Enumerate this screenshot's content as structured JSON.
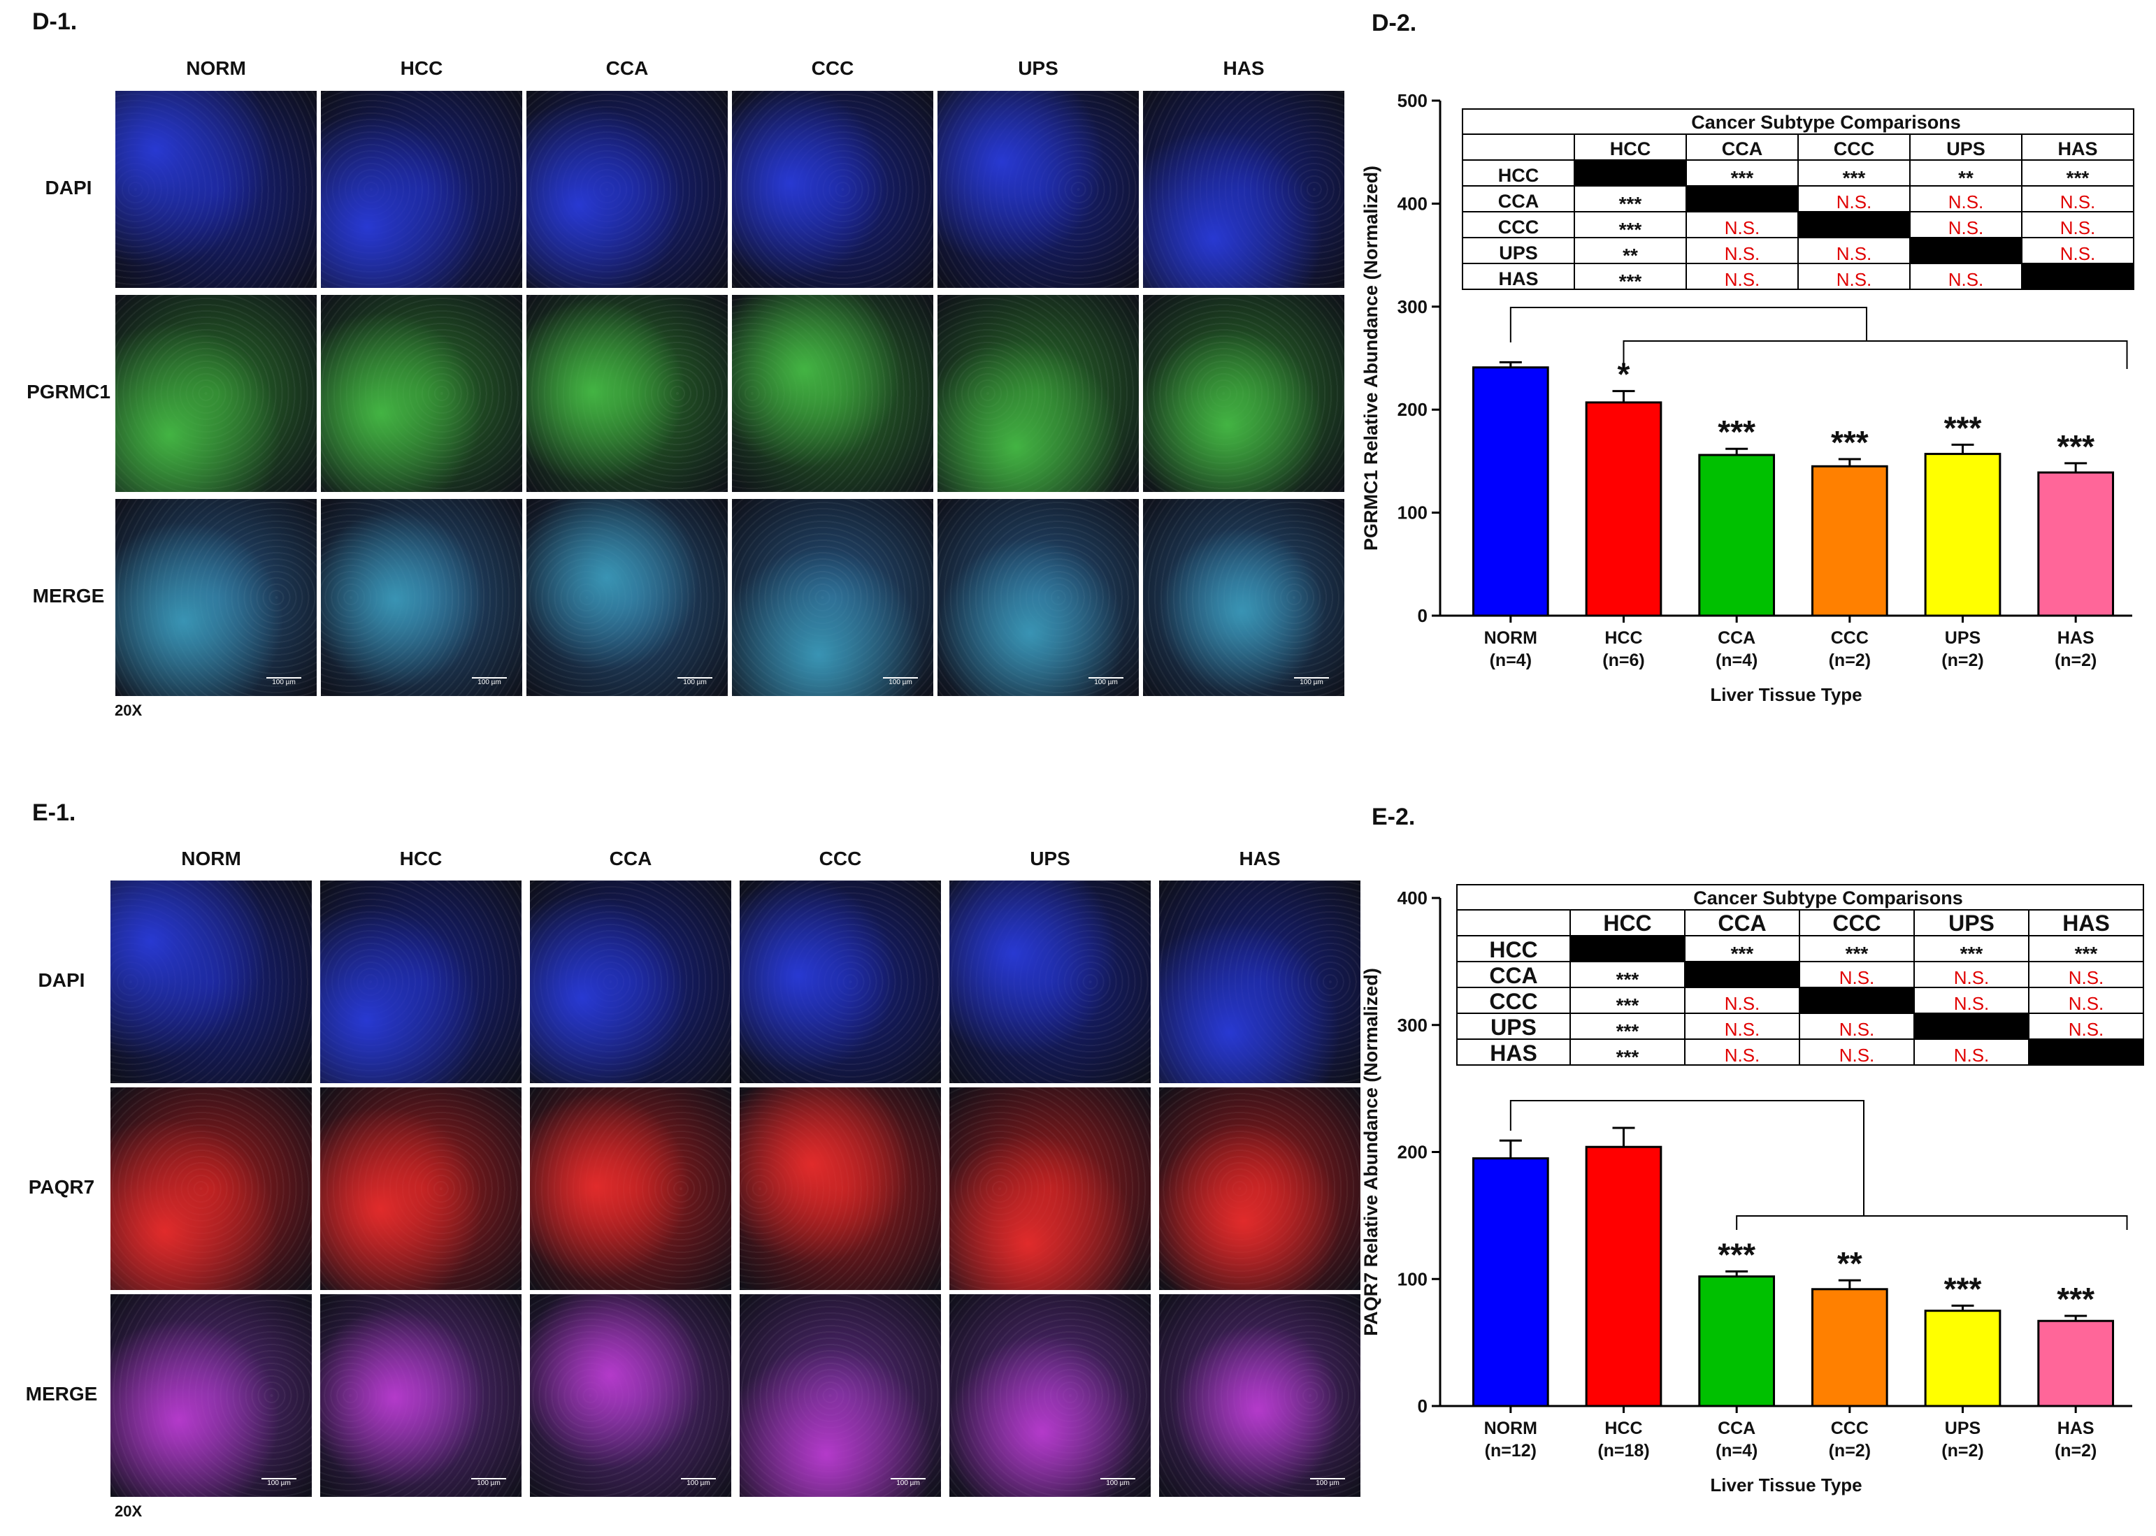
{
  "panel_d1": {
    "label": "D-1.",
    "columns": [
      "NORM",
      "HCC",
      "CCA",
      "CCC",
      "UPS",
      "HAS"
    ],
    "rows": [
      "DAPI",
      "PGRMC1",
      "MERGE"
    ],
    "magnification": "20X",
    "scale_bar_text": "100 µm"
  },
  "panel_e1": {
    "label": "E-1.",
    "columns": [
      "NORM",
      "HCC",
      "CCA",
      "CCC",
      "UPS",
      "HAS"
    ],
    "rows": [
      "DAPI",
      "PAQR7",
      "MERGE"
    ],
    "magnification": "20X",
    "scale_bar_text": "100 µm"
  },
  "colors": {
    "dapi": "#0b1580",
    "pgrmc1": "#1f6a1f",
    "paqr7": "#a01010",
    "merge_green": "#1b4c7a",
    "merge_red": "#55207a",
    "NORM": "#0000ff",
    "HCC": "#ff0000",
    "CCA": "#00c000",
    "CCC": "#ff8000",
    "UPS": "#ffff00",
    "HAS": "#ff6699"
  },
  "chart_data": [
    {
      "id": "D-2",
      "panel_label": "D-2.",
      "type": "bar",
      "categories": [
        "NORM",
        "HCC",
        "CCA",
        "CCC",
        "UPS",
        "HAS"
      ],
      "category_n": [
        "(n=4)",
        "(n=6)",
        "(n=4)",
        "(n=2)",
        "(n=2)",
        "(n=2)"
      ],
      "values": [
        241,
        207,
        156,
        145,
        157,
        139
      ],
      "errors": [
        5,
        11,
        6,
        7,
        9,
        9
      ],
      "significance": [
        "",
        "*",
        "***",
        "***",
        "***",
        "***"
      ],
      "xlabel": "Liver Tissue Type",
      "ylabel": "PGRMC1 Relative Abundance (Normalized)",
      "ylim": [
        0,
        500
      ],
      "yticks": [
        0,
        100,
        200,
        300,
        400,
        500
      ],
      "table": {
        "title": "Cancer Subtype Comparisons",
        "headers": [
          "HCC",
          "CCA",
          "CCC",
          "UPS",
          "HAS"
        ],
        "rows": [
          {
            "label": "HCC",
            "cells": [
              "",
              "***",
              "***",
              "**",
              "***"
            ]
          },
          {
            "label": "CCA",
            "cells": [
              "***",
              "",
              "N.S.",
              "N.S.",
              "N.S."
            ]
          },
          {
            "label": "CCC",
            "cells": [
              "***",
              "N.S.",
              "",
              "N.S.",
              "N.S."
            ]
          },
          {
            "label": "UPS",
            "cells": [
              "**",
              "N.S.",
              "N.S.",
              "",
              "N.S."
            ]
          },
          {
            "label": "HAS",
            "cells": [
              "***",
              "N.S.",
              "N.S.",
              "N.S.",
              ""
            ]
          }
        ]
      },
      "comparison_bracket": {
        "from": "NORM",
        "to_range": [
          "HCC",
          "HAS"
        ]
      }
    },
    {
      "id": "E-2",
      "panel_label": "E-2.",
      "type": "bar",
      "categories": [
        "NORM",
        "HCC",
        "CCA",
        "CCC",
        "UPS",
        "HAS"
      ],
      "category_n": [
        "(n=12)",
        "(n=18)",
        "(n=4)",
        "(n=2)",
        "(n=2)",
        "(n=2)"
      ],
      "values": [
        195,
        204,
        102,
        92,
        75,
        67
      ],
      "errors": [
        14,
        15,
        4,
        7,
        4,
        4
      ],
      "significance": [
        "",
        "",
        "***",
        "**",
        "***",
        "***"
      ],
      "xlabel": "Liver Tissue Type",
      "ylabel": "PAQR7 Relative Abundance (Normalized)",
      "ylim": [
        0,
        400
      ],
      "yticks": [
        0,
        100,
        200,
        300,
        400
      ],
      "table": {
        "title": "Cancer Subtype Comparisons",
        "headers": [
          "HCC",
          "CCA",
          "CCC",
          "UPS",
          "HAS"
        ],
        "rows": [
          {
            "label": "HCC",
            "cells": [
              "",
              "***",
              "***",
              "***",
              "***"
            ]
          },
          {
            "label": "CCA",
            "cells": [
              "***",
              "",
              "N.S.",
              "N.S.",
              "N.S."
            ]
          },
          {
            "label": "CCC",
            "cells": [
              "***",
              "N.S.",
              "",
              "N.S.",
              "N.S."
            ]
          },
          {
            "label": "UPS",
            "cells": [
              "***",
              "N.S.",
              "N.S.",
              "",
              "N.S."
            ]
          },
          {
            "label": "HAS",
            "cells": [
              "***",
              "N.S.",
              "N.S.",
              "N.S.",
              ""
            ]
          }
        ]
      },
      "comparison_bracket": {
        "from": "NORM",
        "to_range": [
          "CCA",
          "HAS"
        ]
      }
    }
  ]
}
